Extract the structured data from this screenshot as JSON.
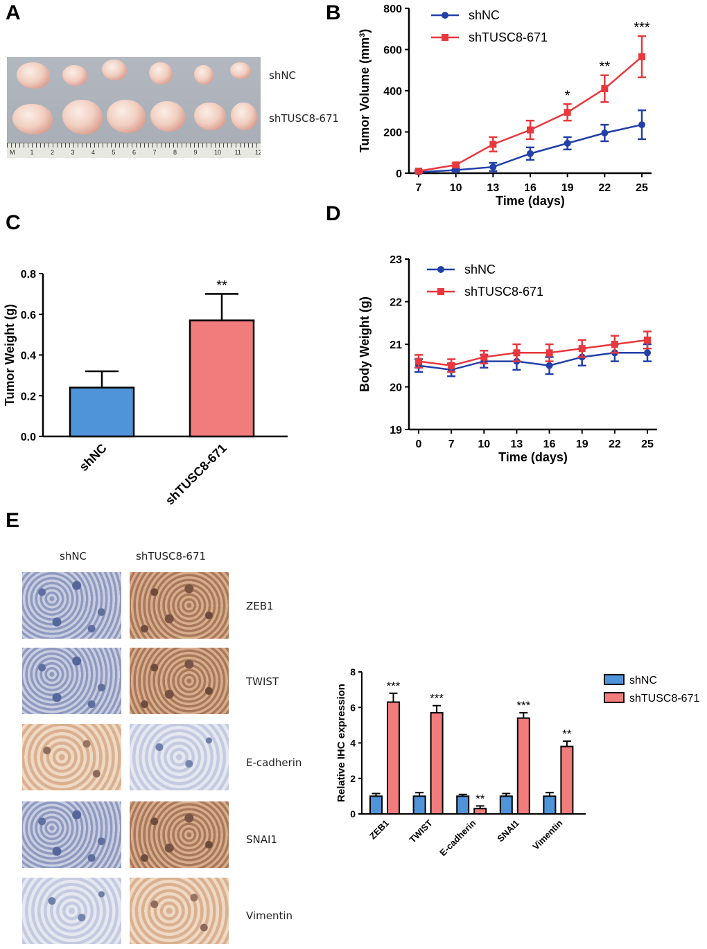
{
  "panels": {
    "A": "A",
    "B": "B",
    "C": "C",
    "D": "D",
    "E": "E"
  },
  "colors": {
    "shNC_line": "#2140a8",
    "shTUSC8_line": "#e8383d",
    "shNC_bar": "#4f93d8",
    "shTUSC8_bar": "#f07c7c"
  },
  "panelA": {
    "labels": {
      "top_row": "shNC",
      "bottom_row": "shTUSC8-671"
    },
    "ruler_ticks": [
      "M",
      "1",
      "2",
      "3",
      "4",
      "5",
      "6",
      "7",
      "8",
      "9",
      "10",
      "11",
      "12"
    ]
  },
  "panelE": {
    "column_headers": [
      "shNC",
      "shTUSC8-671"
    ],
    "row_labels": [
      "ZEB1",
      "TWIST",
      "E-cadherin",
      "SNAI1",
      "Vimentin"
    ]
  },
  "chart_data": [
    {
      "id": "B",
      "type": "line",
      "title": "",
      "xlabel": "Time (days)",
      "ylabel": "Tumor Volume (mm³)",
      "ylabel_base": "Tumor Volume (mm",
      "ylabel_sup": "3",
      "ylabel_close": ")",
      "x": [
        7,
        10,
        13,
        16,
        19,
        22,
        25
      ],
      "ylim": [
        0,
        800
      ],
      "yticks": [
        0,
        200,
        400,
        600,
        800
      ],
      "legend": "top-left",
      "series": [
        {
          "name": "shNC",
          "values": [
            5,
            15,
            30,
            95,
            145,
            195,
            235
          ],
          "errors": [
            3,
            5,
            20,
            30,
            30,
            40,
            70
          ]
        },
        {
          "name": "shTUSC8-671",
          "values": [
            10,
            40,
            140,
            210,
            295,
            410,
            565
          ],
          "errors": [
            5,
            8,
            35,
            45,
            40,
            65,
            100
          ]
        }
      ],
      "annotations": [
        {
          "x": 19,
          "text": "*"
        },
        {
          "x": 22,
          "text": "**"
        },
        {
          "x": 25,
          "text": "***"
        }
      ]
    },
    {
      "id": "C",
      "type": "bar",
      "title": "",
      "xlabel": "",
      "ylabel": "Tumor Weight (g)",
      "categories": [
        "shNC",
        "shTUSC8-671"
      ],
      "values": [
        0.24,
        0.57
      ],
      "errors": [
        0.08,
        0.13
      ],
      "ylim": [
        0,
        0.8
      ],
      "yticks": [
        "0.0",
        "0.2",
        "0.4",
        "0.6",
        "0.8"
      ],
      "annotations": [
        {
          "category": "shTUSC8-671",
          "text": "**"
        }
      ]
    },
    {
      "id": "D",
      "type": "line",
      "title": "",
      "xlabel": "Time (days)",
      "ylabel": "Body Weight (g)",
      "x": [
        0,
        7,
        10,
        13,
        16,
        19,
        22,
        25
      ],
      "ylim": [
        19,
        23
      ],
      "yticks": [
        19,
        20,
        21,
        22,
        23
      ],
      "legend": "top-left",
      "series": [
        {
          "name": "shNC",
          "values": [
            20.5,
            20.4,
            20.6,
            20.6,
            20.5,
            20.7,
            20.8,
            20.8
          ],
          "errors": [
            0.15,
            0.15,
            0.15,
            0.2,
            0.2,
            0.2,
            0.2,
            0.2
          ]
        },
        {
          "name": "shTUSC8-671",
          "values": [
            20.6,
            20.5,
            20.7,
            20.8,
            20.8,
            20.9,
            21.0,
            21.1
          ],
          "errors": [
            0.15,
            0.15,
            0.15,
            0.2,
            0.2,
            0.2,
            0.2,
            0.2
          ]
        }
      ]
    },
    {
      "id": "E",
      "type": "bar",
      "title": "",
      "xlabel": "",
      "ylabel": "Relative IHC expression",
      "categories": [
        "ZEB1",
        "TWIST",
        "E-cadherin",
        "SNAI1",
        "Vimentin"
      ],
      "ylim": [
        0,
        8
      ],
      "yticks": [
        0,
        2,
        4,
        6,
        8
      ],
      "legend": "right",
      "series": [
        {
          "name": "shNC",
          "values": [
            1.0,
            1.0,
            1.0,
            1.0,
            1.0
          ],
          "errors": [
            0.15,
            0.2,
            0.1,
            0.15,
            0.2
          ]
        },
        {
          "name": "shTUSC8-671",
          "values": [
            6.3,
            5.7,
            0.3,
            5.4,
            3.8
          ],
          "errors": [
            0.5,
            0.4,
            0.15,
            0.3,
            0.3
          ]
        }
      ],
      "annotations": [
        {
          "category": "ZEB1",
          "text": "***"
        },
        {
          "category": "TWIST",
          "text": "***"
        },
        {
          "category": "E-cadherin",
          "text": "**"
        },
        {
          "category": "SNAI1",
          "text": "***"
        },
        {
          "category": "Vimentin",
          "text": "**"
        }
      ]
    }
  ]
}
